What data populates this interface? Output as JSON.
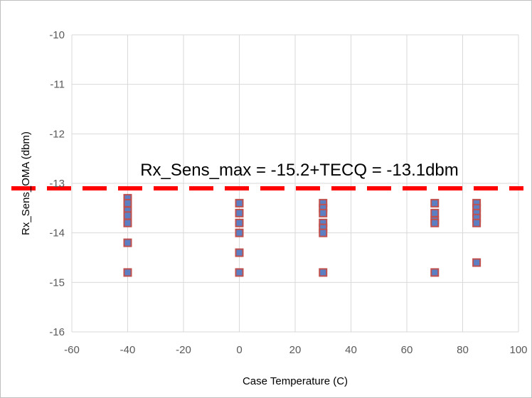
{
  "chart_data": {
    "type": "scatter",
    "title": "",
    "xlabel": "Case Temperature (C)",
    "ylabel": "Rx_Sens_OMA (dbm)",
    "xlim": [
      -60,
      100
    ],
    "ylim": [
      -16,
      -10
    ],
    "xticks": [
      "-60",
      "-40",
      "-20",
      "0",
      "20",
      "40",
      "60",
      "80",
      "100"
    ],
    "yticks": [
      "-10",
      "-11",
      "-12",
      "-13",
      "-14",
      "-15",
      "-16"
    ],
    "grid": true,
    "legend": "none",
    "marker_fill": "#5b7fc2",
    "marker_edge": "#c0504d",
    "limit_line": {
      "y": -13.1,
      "color": "#ff0000",
      "style": "dashed"
    },
    "annotation": "Rx_Sens_max = -15.2+TECQ = -13.1dbm",
    "points": [
      {
        "x": -40,
        "y": -13.3
      },
      {
        "x": -40,
        "y": -13.4
      },
      {
        "x": -40,
        "y": -13.55
      },
      {
        "x": -40,
        "y": -13.65
      },
      {
        "x": -40,
        "y": -13.8
      },
      {
        "x": -40,
        "y": -14.2
      },
      {
        "x": -40,
        "y": -14.8
      },
      {
        "x": 0,
        "y": -13.4
      },
      {
        "x": 0,
        "y": -13.6
      },
      {
        "x": 0,
        "y": -13.8
      },
      {
        "x": 0,
        "y": -14.0
      },
      {
        "x": 0,
        "y": -14.4
      },
      {
        "x": 0,
        "y": -14.8
      },
      {
        "x": 30,
        "y": -13.4
      },
      {
        "x": 30,
        "y": -13.5
      },
      {
        "x": 30,
        "y": -13.6
      },
      {
        "x": 30,
        "y": -13.8
      },
      {
        "x": 30,
        "y": -13.9
      },
      {
        "x": 30,
        "y": -14.0
      },
      {
        "x": 30,
        "y": -14.8
      },
      {
        "x": 70,
        "y": -13.4
      },
      {
        "x": 70,
        "y": -13.6
      },
      {
        "x": 70,
        "y": -13.75
      },
      {
        "x": 70,
        "y": -13.8
      },
      {
        "x": 70,
        "y": -14.8
      },
      {
        "x": 85,
        "y": -13.4
      },
      {
        "x": 85,
        "y": -13.5
      },
      {
        "x": 85,
        "y": -13.6
      },
      {
        "x": 85,
        "y": -13.7
      },
      {
        "x": 85,
        "y": -13.8
      },
      {
        "x": 85,
        "y": -14.6
      }
    ]
  }
}
